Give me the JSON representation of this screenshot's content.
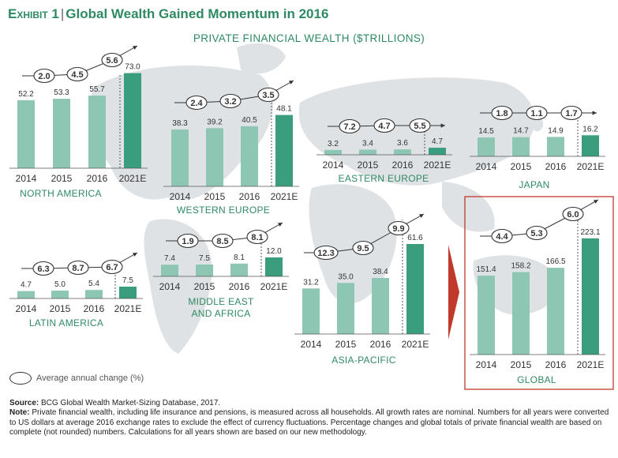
{
  "exhibit": {
    "label": "Exhibit 1",
    "sep": "|",
    "title": "Global Wealth Gained Momentum in 2016"
  },
  "subtitle": "PRIVATE FINANCIAL WEALTH ($TRILLIONS)",
  "legend": {
    "label": "Average annual change (%)"
  },
  "source": {
    "source_label": "Source:",
    "source_text": "BCG Global Wealth Market-Sizing Database, 2017.",
    "note_label": "Note:",
    "note_text": "Private financial wealth, including life insurance and pensions, is measured across all households. All growth rates are nominal. Numbers for all years were converted to US dollars at average 2016 exchange rates to exclude the effect of currency fluctuations. Percentage changes and global totals of private financial wealth are based on complete (not rounded) numbers. Calculations for all years shown are based on our new methodology."
  },
  "colors": {
    "title": "#2f8a64",
    "bar_light": "#8dc6b3",
    "bar_dark": "#3a9e7e",
    "highlight_border": "#c0392b",
    "arrow": "#c0392b",
    "map": "#dfe2e4"
  },
  "chart_data": [
    {
      "type": "bar",
      "region": "NORTH AMERICA",
      "categories": [
        "2014",
        "2015",
        "2016",
        "2021E"
      ],
      "values": [
        52.2,
        53.3,
        55.7,
        73.0
      ],
      "value_labels": [
        "52.2",
        "53.3",
        "55.7",
        "73.0"
      ],
      "changes": [
        "2.0",
        "4.5",
        "5.6"
      ]
    },
    {
      "type": "bar",
      "region": "WESTERN EUROPE",
      "categories": [
        "2014",
        "2015",
        "2016",
        "2021E"
      ],
      "values": [
        38.3,
        39.2,
        40.5,
        48.1
      ],
      "value_labels": [
        "38.3",
        "39.2",
        "40.5",
        "48.1"
      ],
      "changes": [
        "2.4",
        "3.2",
        "3.5"
      ]
    },
    {
      "type": "bar",
      "region": "EASTERN EUROPE",
      "categories": [
        "2014",
        "2015",
        "2016",
        "2021E"
      ],
      "values": [
        3.2,
        3.4,
        3.6,
        4.7
      ],
      "value_labels": [
        "3.2",
        "3.4",
        "3.6",
        "4.7"
      ],
      "changes": [
        "7.2",
        "4.7",
        "5.5"
      ]
    },
    {
      "type": "bar",
      "region": "JAPAN",
      "categories": [
        "2014",
        "2015",
        "2016",
        "2021E"
      ],
      "values": [
        14.5,
        14.7,
        14.9,
        16.2
      ],
      "value_labels": [
        "14.5",
        "14.7",
        "14.9",
        "16.2"
      ],
      "changes": [
        "1.8",
        "1.1",
        "1.7"
      ]
    },
    {
      "type": "bar",
      "region": "LATIN AMERICA",
      "categories": [
        "2014",
        "2015",
        "2016",
        "2021E"
      ],
      "values": [
        4.7,
        5.0,
        5.4,
        7.5
      ],
      "value_labels": [
        "4.7",
        "5.0",
        "5.4",
        "7.5"
      ],
      "changes": [
        "6.3",
        "8.7",
        "6.7"
      ]
    },
    {
      "type": "bar",
      "region": "MIDDLE EAST\nAND AFRICA",
      "categories": [
        "2014",
        "2015",
        "2016",
        "2021E"
      ],
      "values": [
        7.4,
        7.5,
        8.1,
        12.0
      ],
      "value_labels": [
        "7.4",
        "7.5",
        "8.1",
        "12.0"
      ],
      "changes": [
        "1.9",
        "8.5",
        "8.1"
      ]
    },
    {
      "type": "bar",
      "region": "ASIA-PACIFIC",
      "categories": [
        "2014",
        "2015",
        "2016",
        "2021E"
      ],
      "values": [
        31.2,
        35.0,
        38.4,
        61.6
      ],
      "value_labels": [
        "31.2",
        "35.0",
        "38.4",
        "61.6"
      ],
      "changes": [
        "12.3",
        "9.5",
        "9.9"
      ]
    },
    {
      "type": "bar",
      "region": "GLOBAL",
      "categories": [
        "2014",
        "2015",
        "2016",
        "2021E"
      ],
      "values": [
        151.4,
        158.2,
        166.5,
        223.1
      ],
      "value_labels": [
        "151.4",
        "158.2",
        "166.5",
        "223.1"
      ],
      "changes": [
        "4.4",
        "5.3",
        "6.0"
      ]
    }
  ]
}
